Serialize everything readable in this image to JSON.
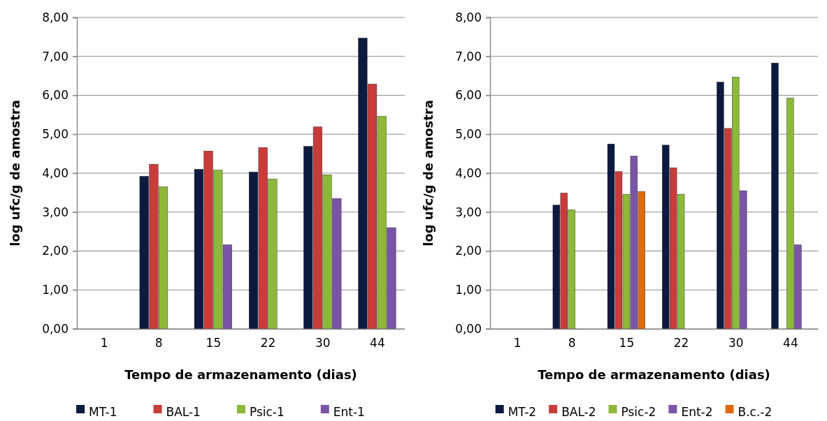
{
  "chart_data": [
    {
      "type": "bar",
      "xlabel": "Tempo de armazenamento (dias)",
      "ylabel": "log ufc/g de amostra",
      "categories": [
        "1",
        "8",
        "15",
        "22",
        "30",
        "44"
      ],
      "ylim": [
        0,
        8
      ],
      "yticks": [
        {
          "value": 0,
          "label": "0,00"
        },
        {
          "value": 1,
          "label": "1,00"
        },
        {
          "value": 2,
          "label": "2,00"
        },
        {
          "value": 3,
          "label": "3,00"
        },
        {
          "value": 4,
          "label": "4,00"
        },
        {
          "value": 5,
          "label": "5,00"
        },
        {
          "value": 6,
          "label": "6,00"
        },
        {
          "value": 7,
          "label": "7,00"
        },
        {
          "value": 8,
          "label": "8,00"
        }
      ],
      "grid": "y",
      "legend": "bottom",
      "series": [
        {
          "name": "MT-1",
          "color": "#0d1a40",
          "values": [
            null,
            3.92,
            4.1,
            4.03,
            4.69,
            7.47
          ]
        },
        {
          "name": "BAL-1",
          "color": "#c83c3a",
          "values": [
            null,
            4.23,
            4.57,
            4.66,
            5.19,
            6.29
          ]
        },
        {
          "name": "Psic-1",
          "color": "#8db83a",
          "values": [
            null,
            3.65,
            4.08,
            3.85,
            3.96,
            5.46
          ]
        },
        {
          "name": "Ent-1",
          "color": "#7a55a6",
          "values": [
            null,
            null,
            2.16,
            null,
            3.35,
            2.6
          ]
        }
      ]
    },
    {
      "type": "bar",
      "xlabel": "Tempo de armazenamento (dias)",
      "ylabel": "log ufc/g de amostra",
      "categories": [
        "1",
        "8",
        "15",
        "22",
        "30",
        "44"
      ],
      "ylim": [
        0,
        8
      ],
      "yticks": [
        {
          "value": 0,
          "label": "0,00"
        },
        {
          "value": 1,
          "label": "1,00"
        },
        {
          "value": 2,
          "label": "2,00"
        },
        {
          "value": 3,
          "label": "3,00"
        },
        {
          "value": 4,
          "label": "4,00"
        },
        {
          "value": 5,
          "label": "5,00"
        },
        {
          "value": 6,
          "label": "6,00"
        },
        {
          "value": 7,
          "label": "7,00"
        },
        {
          "value": 8,
          "label": "8,00"
        }
      ],
      "grid": "y",
      "legend": "bottom",
      "series": [
        {
          "name": "MT-2",
          "color": "#0d1a40",
          "values": [
            null,
            3.18,
            4.75,
            4.72,
            6.34,
            6.83
          ]
        },
        {
          "name": "BAL-2",
          "color": "#c83c3a",
          "values": [
            null,
            3.49,
            4.04,
            4.14,
            5.15,
            null
          ]
        },
        {
          "name": "Psic-2",
          "color": "#8db83a",
          "values": [
            null,
            3.06,
            3.46,
            3.46,
            6.47,
            5.93
          ]
        },
        {
          "name": "Ent-2",
          "color": "#7a55a6",
          "values": [
            null,
            null,
            4.44,
            null,
            3.55,
            2.16
          ]
        },
        {
          "name": "B.c.-2",
          "color": "#e06a0c",
          "values": [
            null,
            null,
            3.53,
            null,
            null,
            null
          ]
        }
      ]
    }
  ]
}
